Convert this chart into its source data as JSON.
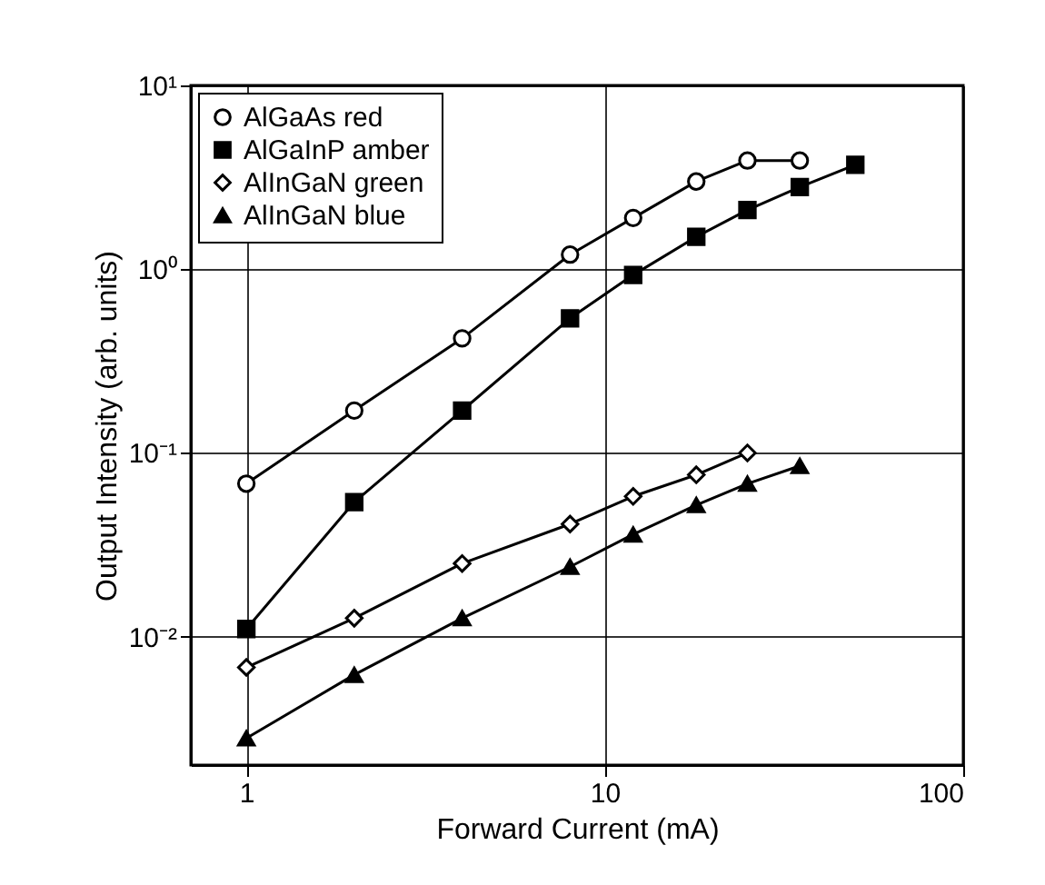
{
  "chart_data": {
    "type": "line",
    "xlabel": "Forward Current (mA)",
    "ylabel": "Output Intensity (arb. units)",
    "log": "xy",
    "xlim": [
      0.7,
      100
    ],
    "ylim": [
      0.002,
      10
    ],
    "xticks": [
      1,
      10,
      100
    ],
    "yticks": [
      {
        "value": 0.01,
        "label": "10⁻²"
      },
      {
        "value": 0.1,
        "label": "10⁻¹"
      },
      {
        "value": 1,
        "label": "10⁰"
      },
      {
        "value": 10,
        "label": "10¹"
      }
    ],
    "grid": true,
    "legend": "top left",
    "line_style": "solid",
    "series": [
      {
        "name": "AlGaAs red",
        "color": "#000000",
        "marker": "circle",
        "x": [
          1,
          2,
          4,
          8,
          12,
          18,
          25,
          35
        ],
        "values": [
          0.068,
          0.17,
          0.42,
          1.2,
          1.9,
          3.0,
          3.9,
          3.9
        ]
      },
      {
        "name": "AlGaInP amber",
        "color": "#000000",
        "marker": "square",
        "x": [
          1,
          2,
          4,
          8,
          12,
          18,
          25,
          35,
          50
        ],
        "values": [
          0.011,
          0.054,
          0.17,
          0.54,
          0.93,
          1.5,
          2.1,
          2.8,
          3.7
        ]
      },
      {
        "name": "AlInGaN green",
        "color": "#000000",
        "marker": "diamond",
        "x": [
          1,
          2,
          4,
          8,
          12,
          18,
          25
        ],
        "values": [
          0.0068,
          0.0126,
          0.025,
          0.041,
          0.058,
          0.076,
          0.1
        ]
      },
      {
        "name": "AlInGaN blue",
        "color": "#000000",
        "marker": "triangle",
        "x": [
          1,
          2,
          4,
          8,
          12,
          18,
          25,
          35
        ],
        "values": [
          0.0028,
          0.0062,
          0.0126,
          0.024,
          0.036,
          0.052,
          0.068,
          0.085
        ]
      }
    ]
  }
}
